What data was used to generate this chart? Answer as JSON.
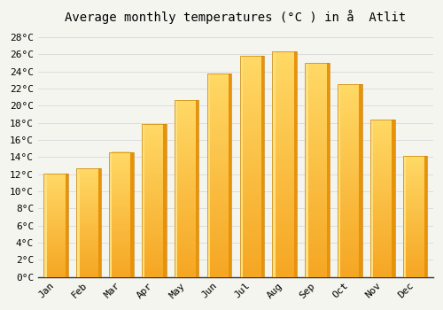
{
  "title": "Average monthly temperatures (°C ) in å  Atlit",
  "months": [
    "Jan",
    "Feb",
    "Mar",
    "Apr",
    "May",
    "Jun",
    "Jul",
    "Aug",
    "Sep",
    "Oct",
    "Nov",
    "Dec"
  ],
  "temperatures": [
    12.1,
    12.7,
    14.6,
    17.9,
    20.7,
    23.8,
    25.8,
    26.3,
    25.0,
    22.5,
    18.4,
    14.1
  ],
  "bar_color_bottom": "#F5A623",
  "bar_color_top": "#FFD966",
  "bar_color_left_highlight": "#FFE080",
  "bar_color_right_shadow": "#E8920A",
  "bar_edge_color": "#C8820A",
  "background_color": "#F5F5F0",
  "plot_bg_color": "#F5F5F0",
  "grid_color": "#DCDCDC",
  "ytick_labels": [
    "0°C",
    "2°C",
    "4°C",
    "6°C",
    "8°C",
    "10°C",
    "12°C",
    "14°C",
    "16°C",
    "18°C",
    "20°C",
    "22°C",
    "24°C",
    "26°C",
    "28°C"
  ],
  "ytick_values": [
    0,
    2,
    4,
    6,
    8,
    10,
    12,
    14,
    16,
    18,
    20,
    22,
    24,
    26,
    28
  ],
  "ylim": [
    0,
    29
  ],
  "title_fontsize": 10,
  "tick_fontsize": 8
}
